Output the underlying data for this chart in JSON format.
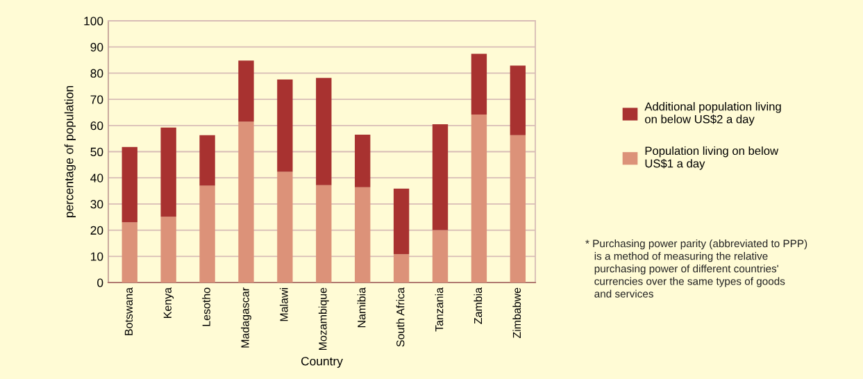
{
  "chart_data": {
    "type": "bar",
    "stacked": true,
    "categories": [
      "Botswana",
      "Kenya",
      "Lesotho",
      "Madagascar",
      "Malawi",
      "Mozambique",
      "Namibia",
      "South Africa",
      "Tanzania",
      "Zambia",
      "Zimbabwe"
    ],
    "series": [
      {
        "name": "Population living on below\nUS$1 a day",
        "color": "#dc9279",
        "values": [
          23.0,
          25.1,
          37.0,
          61.5,
          42.3,
          37.2,
          36.4,
          10.8,
          20.0,
          64.2,
          56.3
        ]
      },
      {
        "name": "Additional population living\non below US$2 a day",
        "color": "#a83230",
        "values": [
          28.8,
          34.1,
          19.3,
          23.3,
          35.3,
          41.0,
          20.1,
          25.1,
          40.5,
          23.2,
          26.6
        ]
      }
    ],
    "xlabel": "Country",
    "ylabel": "percentage of population",
    "ylim": [
      0,
      100
    ],
    "yticks": [
      0,
      10,
      20,
      30,
      40,
      50,
      60,
      70,
      80,
      90,
      100
    ],
    "grid": "y",
    "legend": "right",
    "annotations": [
      "* Purchasing power parity (abbreviated to PPP)\n   is a method of measuring the relative\n   purchasing power of different countries'\n   currencies over the same types of goods\n   and services"
    ]
  }
}
